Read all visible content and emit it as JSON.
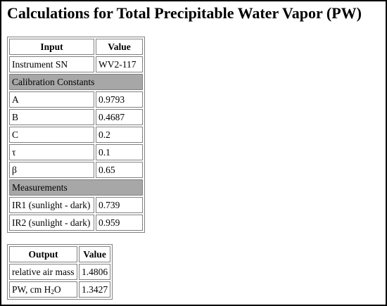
{
  "title": "Calculations for Total Precipitable Water Vapor (PW)",
  "input_table": {
    "headers": [
      "Input",
      "Value"
    ],
    "instrument": {
      "label": "Instrument SN",
      "value": "WV2-117"
    },
    "calibration_header": "Calibration Constants",
    "calibration": [
      {
        "label": "A",
        "value": "0.9793"
      },
      {
        "label": "B",
        "value": "0.4687"
      },
      {
        "label": "C",
        "value": "0.2"
      },
      {
        "label": "τ",
        "value": "0.1"
      },
      {
        "label": "β",
        "value": "0.65"
      }
    ],
    "measurements_header": "Measurements",
    "measurements": [
      {
        "label": "IR1 (sunlight - dark)",
        "value": "0.739"
      },
      {
        "label": "IR2 (sunlight - dark)",
        "value": "0.959"
      }
    ]
  },
  "output_table": {
    "headers": [
      "Output",
      "Value"
    ],
    "rows": [
      {
        "label": "relative air mass",
        "value": "1.4806"
      },
      {
        "label_prefix": "PW, cm H",
        "label_sub": "2",
        "label_suffix": "O",
        "value": "1.3427"
      }
    ]
  },
  "colors": {
    "section_bg": "#a7a7a7",
    "border": "#808080",
    "page_border": "#000000"
  }
}
